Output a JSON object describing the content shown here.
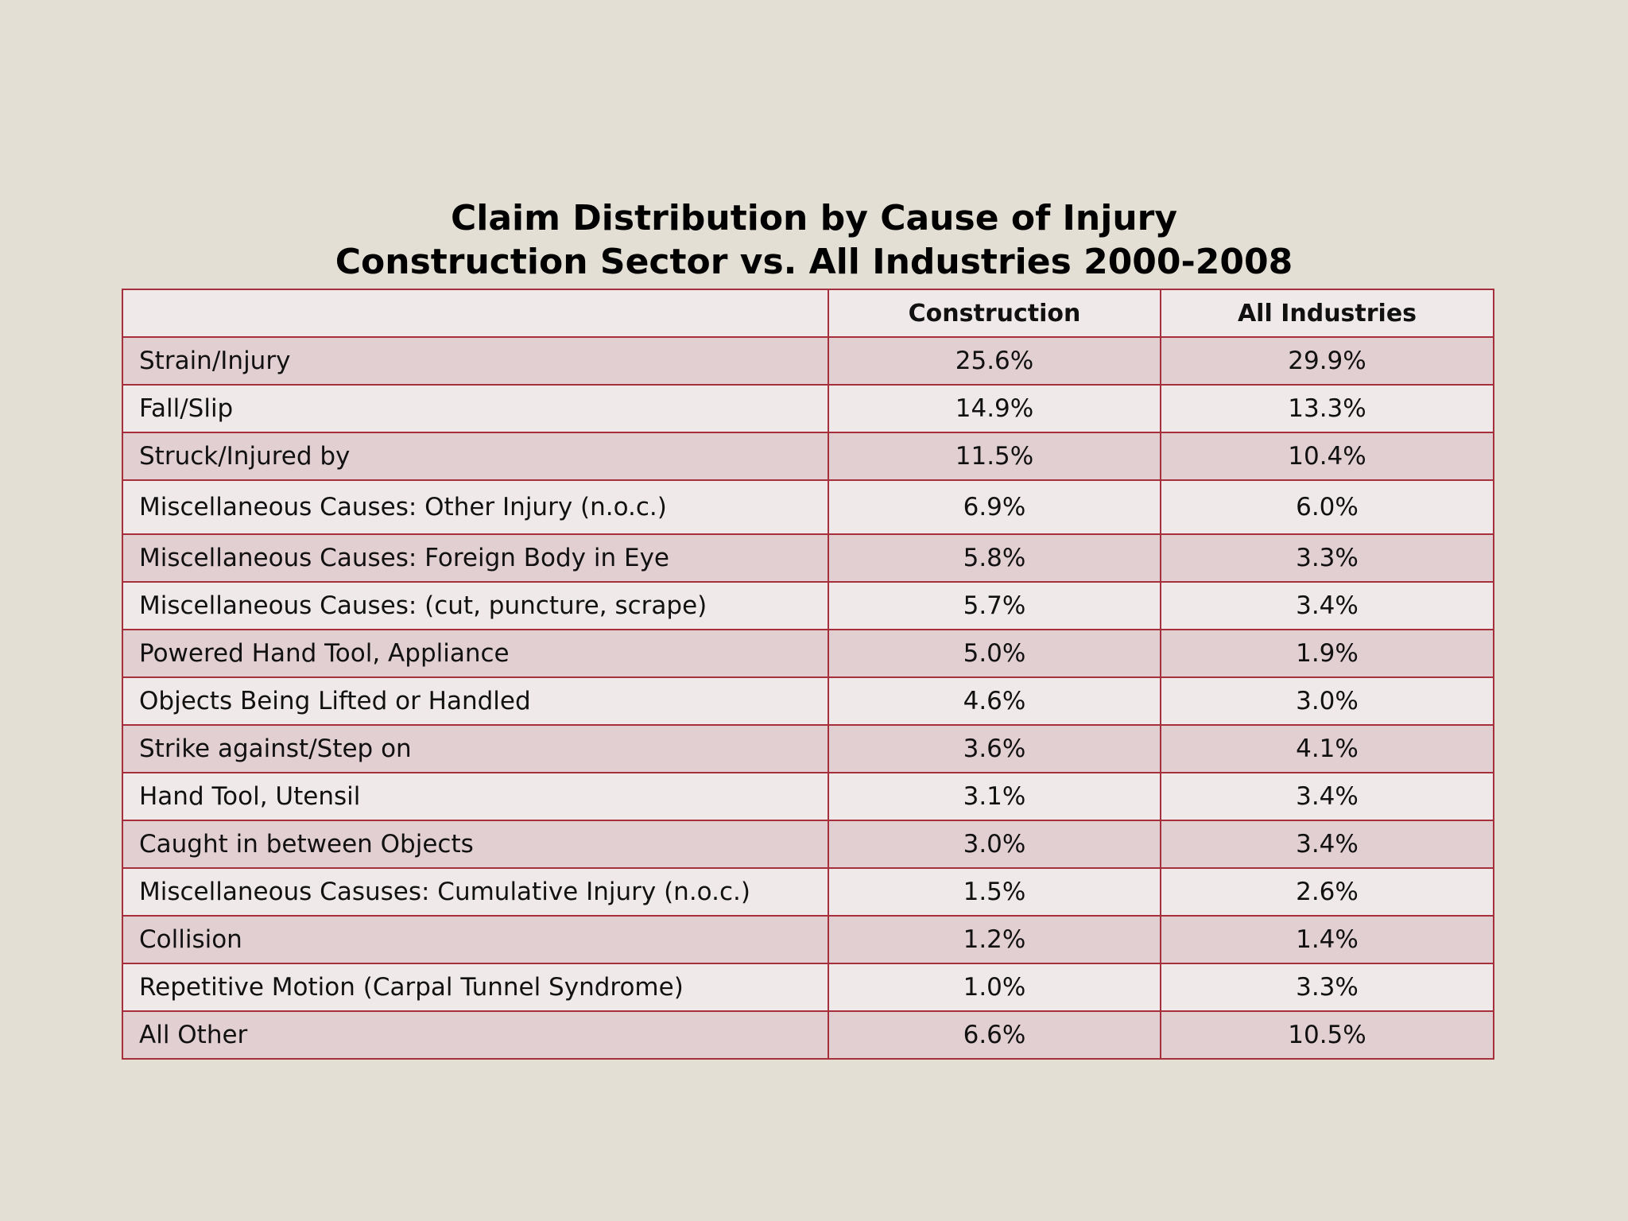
{
  "title": {
    "line1": "Claim Distribution by Cause of Injury",
    "line2": "Construction Sector vs. All Industries 2000-2008"
  },
  "table": {
    "headers": [
      "",
      "Construction",
      "All Industries"
    ],
    "rows": [
      {
        "cause": "Strain/Injury",
        "construction": "25.6%",
        "all_industries": "29.9%"
      },
      {
        "cause": "Fall/Slip",
        "construction": "14.9%",
        "all_industries": "13.3%"
      },
      {
        "cause": "Struck/Injured by",
        "construction": "11.5%",
        "all_industries": "10.4%"
      },
      {
        "cause": "Miscellaneous Causes: Other Injury (n.o.c.)",
        "construction": "6.9%",
        "all_industries": "6.0%"
      },
      {
        "cause": "Miscellaneous Causes: Foreign Body in Eye",
        "construction": "5.8%",
        "all_industries": "3.3%"
      },
      {
        "cause": "Miscellaneous Causes: (cut, puncture, scrape)",
        "construction": "5.7%",
        "all_industries": "3.4%"
      },
      {
        "cause": "Powered Hand Tool, Appliance",
        "construction": "5.0%",
        "all_industries": "1.9%"
      },
      {
        "cause": "Objects Being Lifted or Handled",
        "construction": "4.6%",
        "all_industries": "3.0%"
      },
      {
        "cause": "Strike against/Step on",
        "construction": "3.6%",
        "all_industries": "4.1%"
      },
      {
        "cause": "Hand Tool, Utensil",
        "construction": "3.1%",
        "all_industries": "3.4%"
      },
      {
        "cause": "Caught in between Objects",
        "construction": "3.0%",
        "all_industries": "3.4%"
      },
      {
        "cause": "Miscellaneous Casuses: Cumulative Injury (n.o.c.)",
        "construction": "1.5%",
        "all_industries": "2.6%"
      },
      {
        "cause": "Collision",
        "construction": "1.2%",
        "all_industries": "1.4%"
      },
      {
        "cause": "Repetitive Motion (Carpal Tunnel Syndrome)",
        "construction": "1.0%",
        "all_industries": "3.3%"
      },
      {
        "cause": "All Other",
        "construction": "6.6%",
        "all_industries": "10.5%"
      }
    ]
  },
  "colors": {
    "background": "#e3dfd4",
    "border": "#a5303c",
    "row_light": "#f0e9ea",
    "row_dark": "#e2cfd2"
  }
}
